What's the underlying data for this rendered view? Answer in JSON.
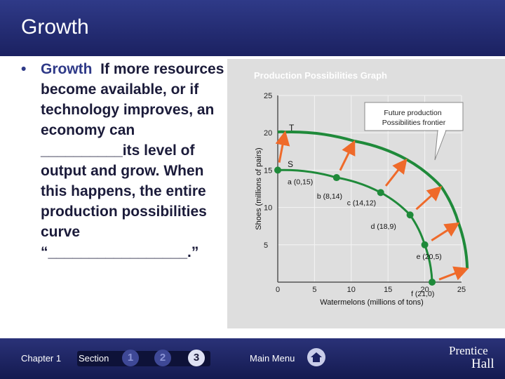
{
  "slide": {
    "title": "Growth"
  },
  "bullet": {
    "lead": "Growth",
    "text": "If more resources become available, or if technology improves, an economy can __________its level of output and grow. When this happens, the entire production possibilities curve “_________________.”"
  },
  "graph": {
    "title": "Production Possibilities Graph",
    "callout": "Future production Possibilities frontier",
    "colors": {
      "curve": "#1f8a3a",
      "arrow": "#ef6a2a",
      "panel": "#dedede",
      "axis": "#555555"
    }
  },
  "chart_data": {
    "type": "line",
    "title": "Production Possibilities Graph",
    "xlabel": "Watermelons (millions of tons)",
    "ylabel": "Shoes (millions of pairs)",
    "xlim": [
      0,
      25
    ],
    "ylim": [
      0,
      25
    ],
    "xticks": [
      "0",
      "5",
      "10",
      "15",
      "20",
      "25"
    ],
    "yticks": [
      "5",
      "10",
      "15",
      "20",
      "25"
    ],
    "points": [
      {
        "label": "a (0,15)",
        "x": 0,
        "y": 15
      },
      {
        "label": "b (8,14)",
        "x": 8,
        "y": 14
      },
      {
        "label": "c (14,12)",
        "x": 14,
        "y": 12
      },
      {
        "label": "d (18,9)",
        "x": 18,
        "y": 9
      },
      {
        "label": "e (20,5)",
        "x": 20,
        "y": 5
      },
      {
        "label": "f (21,0)",
        "x": 21,
        "y": 0
      }
    ],
    "labels": {
      "s": "S",
      "t": "T"
    }
  },
  "footer": {
    "chapter": "Chapter 1",
    "section": "Section",
    "sections": [
      "1",
      "2",
      "3"
    ],
    "active_section": "3",
    "main_menu": "Main Menu",
    "brand_top": "Prentice",
    "brand_bottom": "Hall"
  }
}
